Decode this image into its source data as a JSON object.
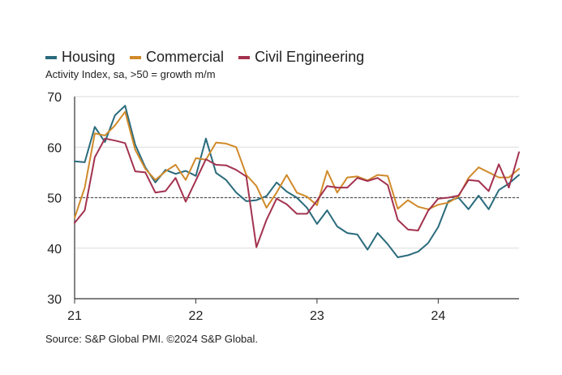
{
  "chart_data": {
    "type": "line",
    "title": "",
    "subtitle": "Activity Index, sa, >50 = growth m/m",
    "source": "Source: S&P Global PMI. ©2024 S&P Global.",
    "ylim": [
      30,
      70
    ],
    "yticks": [
      30,
      40,
      50,
      60,
      70
    ],
    "xticks": [
      {
        "label": "21",
        "index": 0
      },
      {
        "label": "22",
        "index": 12
      },
      {
        "label": "23",
        "index": 24
      },
      {
        "label": "24",
        "index": 36
      }
    ],
    "x_count": 45,
    "reference_line": 50,
    "series": [
      {
        "name": "Housing",
        "color": "#2a6b7c",
        "values": [
          57.2,
          57.0,
          64.0,
          61.0,
          66.3,
          68.2,
          60.5,
          56.0,
          53.0,
          55.5,
          54.7,
          55.3,
          54.3,
          61.7,
          54.9,
          53.5,
          51.0,
          49.3,
          49.5,
          50.3,
          53.0,
          51.2,
          50.0,
          48.0,
          44.8,
          47.5,
          44.3,
          43.0,
          42.7,
          39.7,
          43.0,
          40.8,
          38.2,
          38.6,
          39.3,
          41.0,
          44.2,
          49.3,
          50.0,
          47.7,
          50.4,
          47.7,
          51.5,
          52.8,
          54.5
        ]
      },
      {
        "name": "Commercial",
        "color": "#d08a2a",
        "values": [
          46.0,
          52.0,
          62.7,
          62.3,
          64.3,
          67.0,
          59.5,
          55.7,
          53.5,
          55.2,
          56.5,
          53.5,
          57.8,
          57.5,
          60.9,
          60.7,
          60.0,
          54.5,
          52.3,
          48.0,
          51.0,
          54.5,
          51.0,
          50.2,
          48.5,
          55.3,
          51.0,
          54.0,
          54.2,
          53.4,
          54.5,
          54.3,
          47.8,
          49.5,
          48.2,
          47.7,
          48.6,
          49.0,
          50.2,
          53.9,
          56.0,
          55.0,
          54.0,
          54.0,
          55.7
        ]
      },
      {
        "name": "Civil Engineering",
        "color": "#a3324f",
        "values": [
          45.0,
          47.5,
          58.0,
          61.7,
          61.3,
          60.8,
          55.2,
          55.0,
          51.0,
          51.3,
          53.9,
          49.2,
          53.4,
          57.6,
          56.5,
          56.4,
          55.5,
          54.2,
          40.2,
          45.6,
          49.8,
          48.7,
          46.8,
          46.8,
          49.4,
          52.3,
          52.0,
          52.0,
          53.9,
          53.3,
          53.9,
          52.5,
          45.6,
          43.7,
          43.5,
          47.4,
          49.8,
          50.0,
          50.4,
          53.5,
          53.3,
          51.3,
          56.6,
          52.0,
          59.0
        ]
      }
    ]
  },
  "legend": {
    "items": [
      {
        "label": "Housing",
        "color": "#2a6b7c"
      },
      {
        "label": "Commercial",
        "color": "#d08a2a"
      },
      {
        "label": "Civil Engineering",
        "color": "#a3324f"
      }
    ]
  }
}
